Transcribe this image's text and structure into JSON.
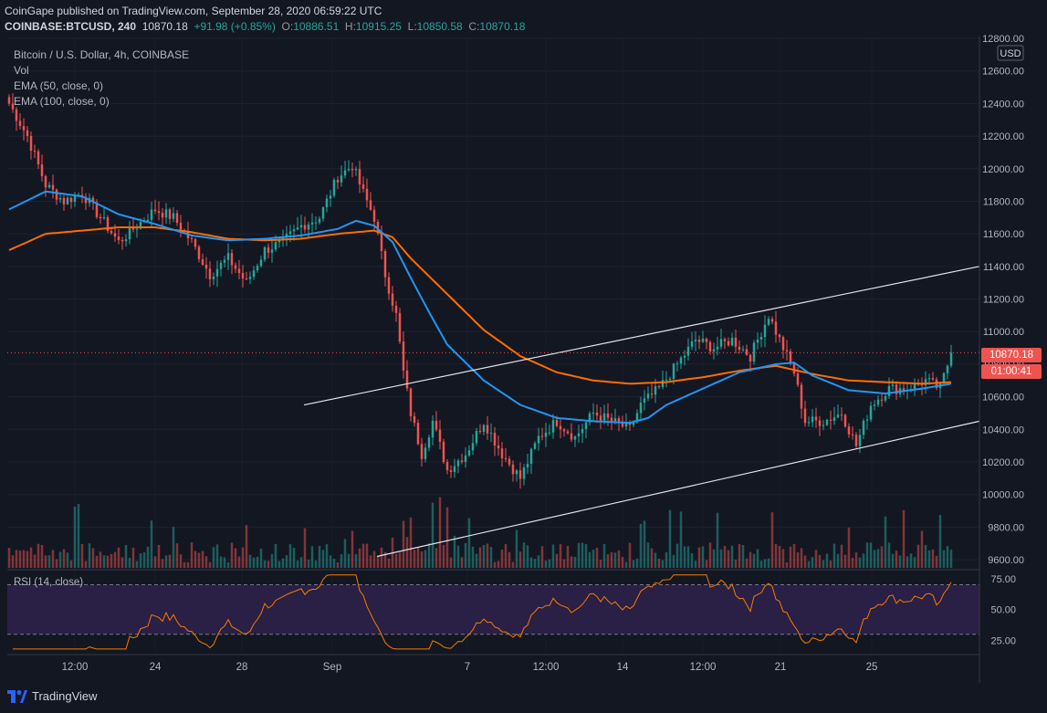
{
  "header": {
    "publisher_line": "CoinGape published on TradingView.com, September 28, 2020 06:59:22 UTC",
    "symbol": "COINBASE:BTCUSD, 240",
    "last": "10870.18",
    "change": "+91.98 (+0.85%)",
    "o_label": "O:",
    "o": "10886.51",
    "h_label": "H:",
    "h": "10915.25",
    "l_label": "L:",
    "l": "10850.58",
    "c_label": "C:",
    "c": "10870.18"
  },
  "legend": {
    "title": "Bitcoin / U.S. Dollar, 4h, COINBASE",
    "vol": "Vol",
    "ema50": "EMA (50, close, 0)",
    "ema100": "EMA (100, close, 0)"
  },
  "axis": {
    "currency": "USD",
    "price_badge": "10870.18",
    "countdown_badge": "01:00:41"
  },
  "rsi": {
    "label": "RSI (14, close)"
  },
  "colors": {
    "background": "#131722",
    "up": "#26a69a",
    "down": "#ef5350",
    "ema50": "#2196f3",
    "ema100": "#ff6d00",
    "rsi": "#f57c00",
    "rsi_band": "#2a1f44"
  },
  "chart_data": {
    "type": "candlestick",
    "title": "Bitcoin / U.S. Dollar, 4h, COINBASE",
    "ylabel": "USD",
    "ylim": [
      9550,
      12800
    ],
    "y_ticks": [
      9600,
      9800,
      10000,
      10200,
      10400,
      10600,
      10800,
      11000,
      11200,
      11400,
      11600,
      11800,
      12000,
      12200,
      12400,
      12600,
      12800
    ],
    "x_tick_labels": [
      "12:00",
      "24",
      "28",
      "Sep",
      "7",
      "12:00",
      "14",
      "12:00",
      "21",
      "25"
    ],
    "last_price": 10870.18,
    "price_waypoints": [
      [
        0,
        12400
      ],
      [
        5,
        12200
      ],
      [
        10,
        11900
      ],
      [
        15,
        11800
      ],
      [
        20,
        11850
      ],
      [
        25,
        11700
      ],
      [
        30,
        11550
      ],
      [
        35,
        11650
      ],
      [
        40,
        11750
      ],
      [
        45,
        11700
      ],
      [
        50,
        11550
      ],
      [
        55,
        11350
      ],
      [
        60,
        11450
      ],
      [
        65,
        11300
      ],
      [
        70,
        11500
      ],
      [
        75,
        11550
      ],
      [
        80,
        11650
      ],
      [
        85,
        11700
      ],
      [
        90,
        11950
      ],
      [
        94,
        12020
      ],
      [
        97,
        11850
      ],
      [
        100,
        11700
      ],
      [
        103,
        11350
      ],
      [
        106,
        11100
      ],
      [
        108,
        10750
      ],
      [
        110,
        10500
      ],
      [
        113,
        10250
      ],
      [
        116,
        10450
      ],
      [
        120,
        10150
      ],
      [
        125,
        10250
      ],
      [
        130,
        10450
      ],
      [
        135,
        10250
      ],
      [
        140,
        10100
      ],
      [
        145,
        10350
      ],
      [
        150,
        10450
      ],
      [
        155,
        10350
      ],
      [
        160,
        10500
      ],
      [
        165,
        10450
      ],
      [
        170,
        10400
      ],
      [
        173,
        10550
      ],
      [
        178,
        10650
      ],
      [
        183,
        10800
      ],
      [
        188,
        10950
      ],
      [
        193,
        10900
      ],
      [
        198,
        10950
      ],
      [
        203,
        10850
      ],
      [
        208,
        11100
      ],
      [
        212,
        10900
      ],
      [
        215,
        10750
      ],
      [
        218,
        10450
      ],
      [
        223,
        10450
      ],
      [
        228,
        10500
      ],
      [
        232,
        10300
      ],
      [
        236,
        10550
      ],
      [
        241,
        10650
      ],
      [
        246,
        10650
      ],
      [
        251,
        10700
      ],
      [
        255,
        10650
      ],
      [
        258,
        10870
      ]
    ],
    "ema50_points": [
      [
        0,
        11750
      ],
      [
        10,
        11860
      ],
      [
        20,
        11830
      ],
      [
        30,
        11720
      ],
      [
        40,
        11660
      ],
      [
        50,
        11590
      ],
      [
        60,
        11560
      ],
      [
        70,
        11570
      ],
      [
        80,
        11590
      ],
      [
        90,
        11630
      ],
      [
        95,
        11680
      ],
      [
        100,
        11650
      ],
      [
        105,
        11550
      ],
      [
        110,
        11330
      ],
      [
        115,
        11120
      ],
      [
        120,
        10920
      ],
      [
        130,
        10700
      ],
      [
        140,
        10550
      ],
      [
        150,
        10470
      ],
      [
        160,
        10450
      ],
      [
        170,
        10440
      ],
      [
        175,
        10470
      ],
      [
        180,
        10550
      ],
      [
        190,
        10650
      ],
      [
        200,
        10750
      ],
      [
        210,
        10800
      ],
      [
        215,
        10810
      ],
      [
        220,
        10730
      ],
      [
        230,
        10640
      ],
      [
        240,
        10620
      ],
      [
        250,
        10650
      ],
      [
        258,
        10680
      ]
    ],
    "ema100_points": [
      [
        0,
        11500
      ],
      [
        10,
        11600
      ],
      [
        20,
        11620
      ],
      [
        30,
        11640
      ],
      [
        40,
        11640
      ],
      [
        50,
        11610
      ],
      [
        60,
        11570
      ],
      [
        70,
        11560
      ],
      [
        80,
        11570
      ],
      [
        90,
        11600
      ],
      [
        100,
        11620
      ],
      [
        105,
        11580
      ],
      [
        110,
        11450
      ],
      [
        120,
        11230
      ],
      [
        130,
        11010
      ],
      [
        140,
        10850
      ],
      [
        150,
        10750
      ],
      [
        160,
        10700
      ],
      [
        170,
        10680
      ],
      [
        180,
        10690
      ],
      [
        190,
        10720
      ],
      [
        200,
        10760
      ],
      [
        210,
        10790
      ],
      [
        220,
        10740
      ],
      [
        230,
        10700
      ],
      [
        240,
        10690
      ],
      [
        250,
        10680
      ],
      [
        258,
        10690
      ]
    ],
    "trendlines": [
      {
        "name": "upper-channel",
        "from": [
          333,
          10550
        ],
        "to": [
          1073,
          11400
        ]
      },
      {
        "name": "lower-channel",
        "from": [
          413,
          9620
        ],
        "to": [
          1073,
          10450
        ]
      }
    ],
    "rsi": {
      "ylim": [
        15,
        80
      ],
      "levels": [
        70,
        30
      ],
      "ticks": [
        75,
        50,
        25
      ]
    }
  }
}
